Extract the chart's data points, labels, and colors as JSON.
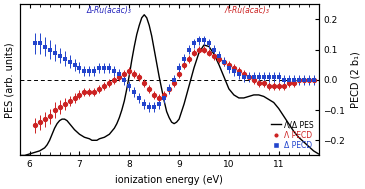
{
  "xlim": [
    5.8,
    11.8
  ],
  "ylim_left": [
    0,
    1.0
  ],
  "ylim_right": [
    -0.25,
    0.25
  ],
  "xlabel": "ionization energy (eV)",
  "ylabel_left": "PES (arb. units)",
  "ylabel_right": "PECD (2 b₁)",
  "yticks_right": [
    -0.2,
    -0.1,
    0.0,
    0.1,
    0.2
  ],
  "xticks": [
    6,
    7,
    8,
    9,
    10,
    11
  ],
  "background_color": "#ffffff",
  "pes_x": [
    5.8,
    5.9,
    6.0,
    6.1,
    6.2,
    6.3,
    6.35,
    6.4,
    6.45,
    6.5,
    6.55,
    6.6,
    6.65,
    6.7,
    6.75,
    6.8,
    6.85,
    6.9,
    6.95,
    7.0,
    7.05,
    7.1,
    7.15,
    7.2,
    7.25,
    7.3,
    7.35,
    7.4,
    7.5,
    7.6,
    7.7,
    7.75,
    7.8,
    7.85,
    7.9,
    7.95,
    8.0,
    8.05,
    8.1,
    8.15,
    8.2,
    8.25,
    8.3,
    8.35,
    8.4,
    8.45,
    8.5,
    8.6,
    8.7,
    8.75,
    8.8,
    8.85,
    8.9,
    8.95,
    9.0,
    9.1,
    9.2,
    9.3,
    9.4,
    9.5,
    9.6,
    9.7,
    9.8,
    9.9,
    10.0,
    10.1,
    10.2,
    10.3,
    10.4,
    10.5,
    10.6,
    10.7,
    10.8,
    10.9,
    11.0,
    11.1,
    11.2,
    11.3,
    11.4,
    11.5,
    11.6,
    11.7,
    11.8
  ],
  "pes_y": [
    0.0,
    0.0,
    0.01,
    0.02,
    0.03,
    0.05,
    0.07,
    0.1,
    0.14,
    0.18,
    0.21,
    0.23,
    0.24,
    0.24,
    0.23,
    0.21,
    0.19,
    0.17,
    0.155,
    0.14,
    0.13,
    0.12,
    0.115,
    0.11,
    0.1,
    0.1,
    0.1,
    0.11,
    0.12,
    0.14,
    0.18,
    0.21,
    0.25,
    0.3,
    0.36,
    0.44,
    0.53,
    0.63,
    0.72,
    0.8,
    0.86,
    0.91,
    0.93,
    0.91,
    0.86,
    0.79,
    0.7,
    0.52,
    0.36,
    0.29,
    0.25,
    0.22,
    0.21,
    0.22,
    0.24,
    0.34,
    0.46,
    0.58,
    0.68,
    0.73,
    0.72,
    0.67,
    0.6,
    0.52,
    0.44,
    0.4,
    0.38,
    0.38,
    0.39,
    0.4,
    0.4,
    0.39,
    0.37,
    0.35,
    0.31,
    0.26,
    0.21,
    0.16,
    0.12,
    0.09,
    0.06,
    0.03,
    0.01
  ],
  "lambda_pecd_x": [
    6.1,
    6.2,
    6.3,
    6.4,
    6.5,
    6.6,
    6.7,
    6.8,
    6.9,
    7.0,
    7.1,
    7.2,
    7.3,
    7.4,
    7.5,
    7.6,
    7.7,
    7.8,
    7.9,
    8.0,
    8.1,
    8.2,
    8.3,
    8.4,
    8.5,
    8.6,
    8.7,
    8.8,
    8.9,
    9.0,
    9.1,
    9.2,
    9.3,
    9.4,
    9.5,
    9.6,
    9.7,
    9.8,
    9.9,
    10.0,
    10.1,
    10.2,
    10.3,
    10.4,
    10.5,
    10.6,
    10.7,
    10.8,
    10.9,
    11.0,
    11.1,
    11.2,
    11.3,
    11.4,
    11.5,
    11.6,
    11.7
  ],
  "lambda_pecd_y": [
    -0.15,
    -0.14,
    -0.13,
    -0.12,
    -0.1,
    -0.09,
    -0.08,
    -0.07,
    -0.06,
    -0.05,
    -0.04,
    -0.04,
    -0.04,
    -0.03,
    -0.02,
    -0.01,
    0.0,
    0.01,
    0.02,
    0.03,
    0.02,
    0.01,
    -0.01,
    -0.03,
    -0.05,
    -0.06,
    -0.05,
    -0.03,
    -0.01,
    0.02,
    0.05,
    0.07,
    0.09,
    0.1,
    0.1,
    0.09,
    0.08,
    0.07,
    0.06,
    0.05,
    0.04,
    0.03,
    0.02,
    0.01,
    0.0,
    -0.01,
    -0.01,
    -0.02,
    -0.02,
    -0.02,
    -0.02,
    -0.01,
    -0.01,
    0.0,
    0.0,
    0.0,
    0.0
  ],
  "lambda_pecd_yerr": [
    0.025,
    0.025,
    0.025,
    0.025,
    0.025,
    0.022,
    0.02,
    0.018,
    0.016,
    0.015,
    0.014,
    0.013,
    0.013,
    0.013,
    0.013,
    0.013,
    0.013,
    0.013,
    0.013,
    0.013,
    0.013,
    0.013,
    0.013,
    0.013,
    0.013,
    0.013,
    0.013,
    0.013,
    0.013,
    0.013,
    0.013,
    0.013,
    0.013,
    0.013,
    0.013,
    0.013,
    0.013,
    0.013,
    0.013,
    0.013,
    0.013,
    0.013,
    0.013,
    0.013,
    0.013,
    0.013,
    0.013,
    0.013,
    0.013,
    0.013,
    0.013,
    0.013,
    0.013,
    0.013,
    0.013,
    0.013,
    0.013
  ],
  "delta_pecd_x": [
    6.1,
    6.2,
    6.3,
    6.4,
    6.5,
    6.6,
    6.7,
    6.8,
    6.9,
    7.0,
    7.1,
    7.2,
    7.3,
    7.4,
    7.5,
    7.6,
    7.7,
    7.8,
    7.9,
    8.0,
    8.1,
    8.2,
    8.3,
    8.4,
    8.5,
    8.6,
    8.7,
    8.8,
    8.9,
    9.0,
    9.1,
    9.2,
    9.3,
    9.4,
    9.5,
    9.6,
    9.7,
    9.8,
    9.9,
    10.0,
    10.1,
    10.2,
    10.3,
    10.4,
    10.5,
    10.6,
    10.7,
    10.8,
    10.9,
    11.0,
    11.1,
    11.2,
    11.3,
    11.4,
    11.5,
    11.6,
    11.7
  ],
  "delta_pecd_y": [
    0.12,
    0.12,
    0.11,
    0.1,
    0.09,
    0.08,
    0.07,
    0.06,
    0.05,
    0.04,
    0.03,
    0.03,
    0.03,
    0.04,
    0.04,
    0.04,
    0.03,
    0.02,
    0.0,
    -0.02,
    -0.04,
    -0.06,
    -0.08,
    -0.09,
    -0.09,
    -0.08,
    -0.06,
    -0.03,
    0.0,
    0.04,
    0.07,
    0.1,
    0.12,
    0.13,
    0.13,
    0.12,
    0.1,
    0.08,
    0.06,
    0.04,
    0.03,
    0.02,
    0.01,
    0.01,
    0.01,
    0.01,
    0.01,
    0.01,
    0.01,
    0.01,
    0.0,
    0.0,
    0.0,
    0.0,
    0.0,
    0.0,
    0.0
  ],
  "delta_pecd_yerr": [
    0.035,
    0.035,
    0.033,
    0.03,
    0.028,
    0.026,
    0.024,
    0.022,
    0.02,
    0.018,
    0.017,
    0.016,
    0.016,
    0.016,
    0.016,
    0.016,
    0.016,
    0.016,
    0.016,
    0.016,
    0.016,
    0.016,
    0.016,
    0.016,
    0.016,
    0.016,
    0.016,
    0.016,
    0.016,
    0.016,
    0.016,
    0.016,
    0.016,
    0.016,
    0.016,
    0.016,
    0.016,
    0.016,
    0.016,
    0.016,
    0.016,
    0.016,
    0.016,
    0.016,
    0.016,
    0.016,
    0.016,
    0.016,
    0.016,
    0.016,
    0.016,
    0.016,
    0.016,
    0.016,
    0.016,
    0.016,
    0.016
  ],
  "legend_line_label": "Λ/Δ PES",
  "legend_lambda_label": "Λ PECD",
  "legend_delta_label": "Δ PECD",
  "lambda_mol_label": "Λ-Ru(acac)₃",
  "delta_mol_label": "Δ-Ru(acac)₃",
  "lambda_mol_color": "#cc2222",
  "delta_mol_color": "#2222bb",
  "red_color": "#cc2222",
  "blue_color": "#2244cc"
}
